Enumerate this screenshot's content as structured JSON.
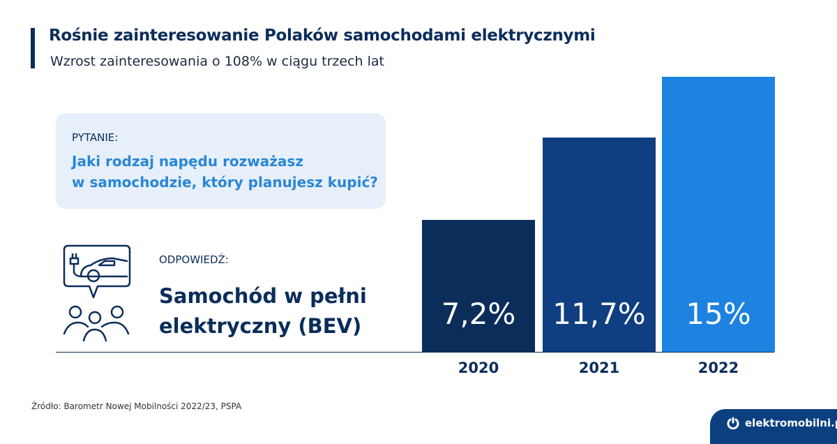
{
  "header": {
    "title": "Rośnie zainteresowanie Polaków samochodami elektrycznymi",
    "subtitle": "Wzrost zainteresowania o 108% w ciągu trzech lat"
  },
  "question": {
    "label": "PYTANIE:",
    "text": "Jaki rodzaj napędu rozważasz\nw samochodzie, który planujesz kupić?"
  },
  "answer": {
    "label": "ODPOWIEDŹ:",
    "text": "Samochód w pełni\nelektryczny (BEV)",
    "icon": "ev-car-speech-bubble-people-icon"
  },
  "source": "Źródło: Barometr Nowej Mobilności 2022/23, PSPA",
  "brand": {
    "name": "elektromobilni.pl",
    "icon": "power-icon",
    "color": "#0b3f80"
  },
  "chart_data": {
    "type": "bar",
    "categories": [
      "2020",
      "2021",
      "2022"
    ],
    "values": [
      7.2,
      11.7,
      15
    ],
    "labels": [
      "7,2%",
      "11,7%",
      "15%"
    ],
    "colors": [
      "#0b2d5a",
      "#0f3f80",
      "#1e82e0"
    ],
    "ylim": [
      0,
      15
    ],
    "grid": false
  }
}
